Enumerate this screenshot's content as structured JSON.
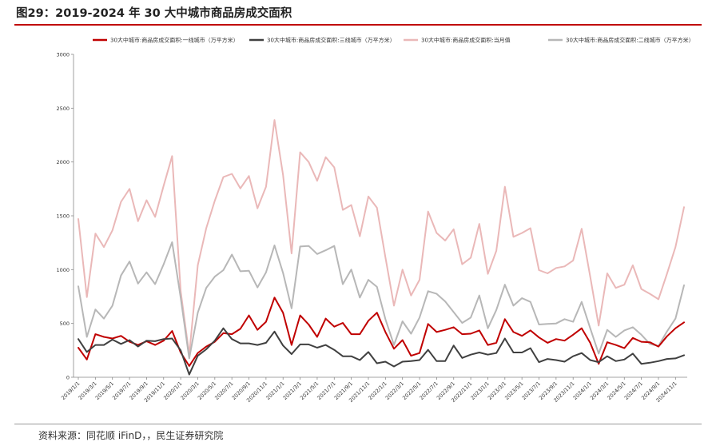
{
  "title": "图29：2019-2024 年 30 大中城市商品房成交面积",
  "source": "资料来源：同花顺 iFinD，，民生证券研究院",
  "colors": {
    "first_tier": "#c00000",
    "third_tier": "#404040",
    "total": "#eab8b8",
    "second_tier": "#b7b7b7"
  },
  "chart_data": {
    "type": "line",
    "ylim": [
      0,
      3000
    ],
    "yticks": [
      0,
      500,
      1000,
      1500,
      2000,
      2500,
      3000
    ],
    "legend_position": "top",
    "x_tick_labels": [
      "2019/1/1",
      "2019/3/1",
      "2019/5/1",
      "2019/7/1",
      "2019/9/1",
      "2019/11/1",
      "2020/1/1",
      "2020/3/1",
      "2020/5/1",
      "2020/7/1",
      "2020/9/1",
      "2020/11/1",
      "2021/1/1",
      "2021/3/1",
      "2021/5/1",
      "2021/7/1",
      "2021/9/1",
      "2021/11/1",
      "2022/1/1",
      "2022/3/1",
      "2022/5/1",
      "2022/7/1",
      "2022/9/1",
      "2022/11/1",
      "2023/1/1",
      "2023/3/1",
      "2023/5/1",
      "2023/7/1",
      "2023/9/1",
      "2023/11/1",
      "2024/1/1",
      "2024/3/1",
      "2024/5/1",
      "2024/7/1",
      "2024/9/1",
      "2024/11/1"
    ],
    "series": [
      {
        "name": "30大中城市:商品房成交面积:一线城市（万平方米）",
        "color": "#c00000",
        "width": 2,
        "values": [
          275,
          165,
          400,
          375,
          360,
          385,
          330,
          300,
          335,
          300,
          340,
          430,
          230,
          105,
          225,
          285,
          330,
          410,
          400,
          450,
          575,
          440,
          515,
          740,
          600,
          300,
          575,
          490,
          375,
          545,
          470,
          505,
          400,
          400,
          525,
          600,
          420,
          265,
          345,
          200,
          225,
          495,
          420,
          440,
          465,
          400,
          405,
          435,
          300,
          320,
          540,
          420,
          385,
          435,
          370,
          320,
          355,
          340,
          395,
          455,
          320,
          125,
          325,
          300,
          270,
          365,
          330,
          325,
          285,
          380,
          455,
          510
        ]
      },
      {
        "name": "30大中城市:商品房成交面积:三线城市（万平方米）",
        "color": "#404040",
        "width": 2,
        "values": [
          355,
          235,
          300,
          300,
          350,
          310,
          345,
          285,
          340,
          335,
          355,
          360,
          250,
          25,
          200,
          260,
          340,
          455,
          355,
          315,
          315,
          300,
          320,
          425,
          295,
          215,
          305,
          305,
          275,
          300,
          255,
          195,
          195,
          160,
          235,
          130,
          145,
          100,
          145,
          150,
          160,
          255,
          150,
          150,
          295,
          180,
          210,
          230,
          210,
          225,
          360,
          230,
          230,
          270,
          140,
          170,
          160,
          145,
          195,
          225,
          160,
          140,
          195,
          150,
          165,
          220,
          125,
          135,
          150,
          170,
          175,
          205
        ]
      },
      {
        "name": "30大中城市:商品房成交面积:当月值",
        "color": "#eab8b8",
        "width": 2,
        "values": [
          1470,
          745,
          1335,
          1210,
          1365,
          1630,
          1750,
          1450,
          1645,
          1490,
          1780,
          2055,
          800,
          210,
          1040,
          1385,
          1640,
          1860,
          1890,
          1755,
          1870,
          1570,
          1770,
          2390,
          1880,
          1150,
          2090,
          2000,
          1825,
          2045,
          1950,
          1555,
          1600,
          1310,
          1680,
          1575,
          1115,
          665,
          1000,
          760,
          905,
          1540,
          1340,
          1270,
          1375,
          1050,
          1110,
          1425,
          960,
          1175,
          1770,
          1305,
          1340,
          1385,
          995,
          965,
          1015,
          1030,
          1085,
          1380,
          935,
          480,
          965,
          830,
          860,
          1040,
          820,
          775,
          725,
          960,
          1210,
          1580
        ]
      },
      {
        "name": "30大中城市:商品房成交面积:二线城市（万平方米）",
        "color": "#b7b7b7",
        "width": 2,
        "values": [
          845,
          375,
          630,
          545,
          665,
          945,
          1075,
          870,
          975,
          865,
          1050,
          1255,
          740,
          175,
          600,
          830,
          935,
          995,
          1140,
          985,
          990,
          835,
          975,
          1225,
          970,
          640,
          1215,
          1220,
          1145,
          1180,
          1220,
          865,
          1000,
          740,
          905,
          840,
          540,
          300,
          520,
          405,
          555,
          800,
          775,
          705,
          605,
          505,
          555,
          760,
          455,
          625,
          860,
          665,
          735,
          700,
          490,
          495,
          500,
          540,
          515,
          700,
          455,
          220,
          440,
          375,
          435,
          465,
          395,
          310,
          290,
          425,
          545,
          855
        ]
      }
    ]
  }
}
